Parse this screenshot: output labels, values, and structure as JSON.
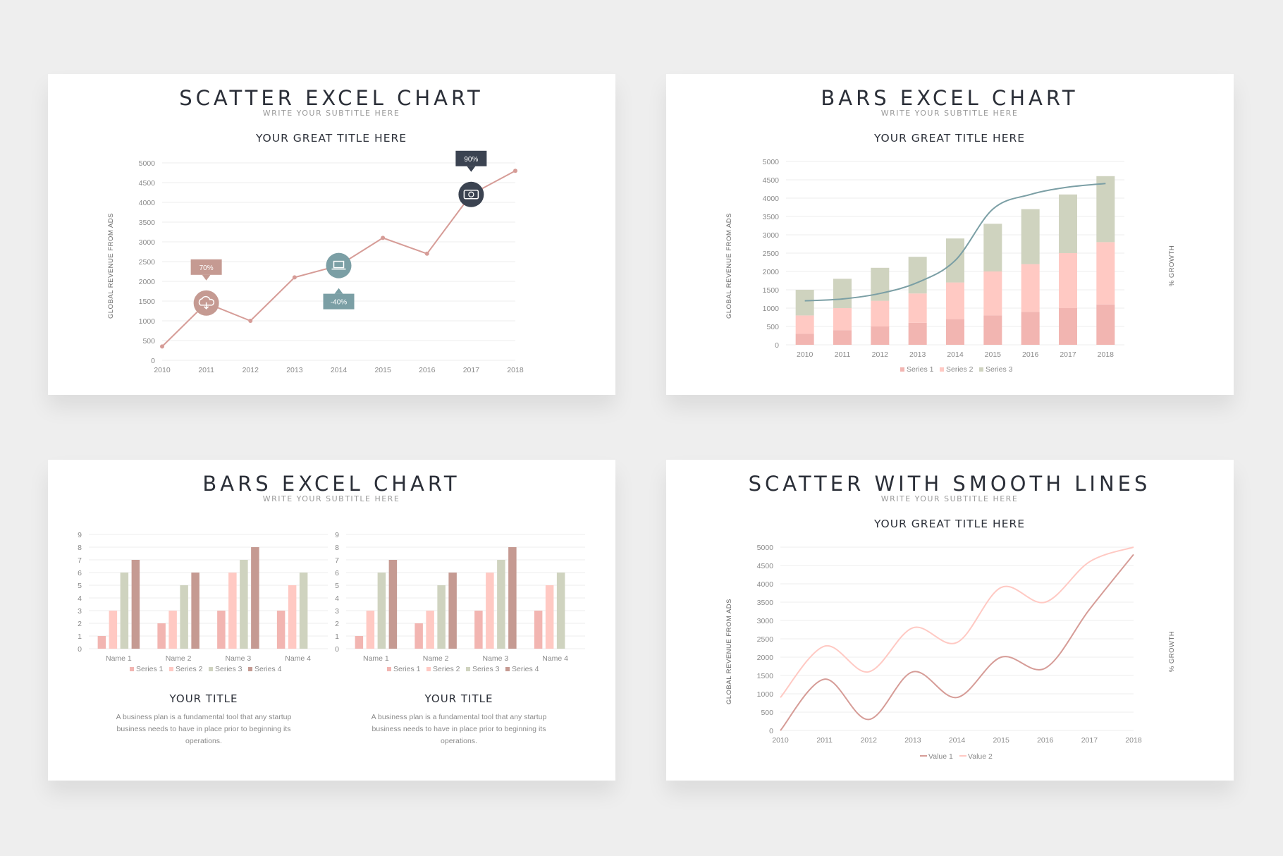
{
  "colors": {
    "rose": "#d69c97",
    "pink": "#ffc9c3",
    "lightpink": "#f2b5b1",
    "sage": "#cfd3bf",
    "mauve": "#c59a92",
    "slate": "#7b9fa5",
    "navy": "#3b4351",
    "grid": "#eeeeee"
  },
  "slides": [
    {
      "title": "SCATTER EXCEL CHART",
      "subtitle": "WRITE YOUR SUBTITLE HERE",
      "chart_title": "YOUR GREAT TITLE HERE",
      "y_axis_label": "GLOBAL REVENUE FROM ADS",
      "badges": [
        {
          "year": 2011,
          "value": 1450,
          "label": "70%",
          "icon": "cloud-icon",
          "position": "above"
        },
        {
          "year": 2014,
          "value": 2400,
          "label": "-40%",
          "icon": "laptop-icon",
          "position": "below"
        },
        {
          "year": 2017,
          "value": 4200,
          "label": "90%",
          "icon": "money-icon",
          "position": "above"
        }
      ]
    },
    {
      "title": "BARS EXCEL CHART",
      "subtitle": "WRITE YOUR SUBTITLE HERE",
      "chart_title": "YOUR GREAT TITLE HERE",
      "y_axis_label": "GLOBAL REVENUE FROM ADS",
      "y2_axis_label": "% GROWTH"
    },
    {
      "title": "BARS EXCEL CHART",
      "subtitle": "WRITE YOUR SUBTITLE HERE",
      "panels": [
        {
          "title": "YOUR TITLE",
          "text": [
            "A business plan is a fundamental tool that any startup",
            "business needs to have in place prior to beginning its",
            "operations."
          ]
        },
        {
          "title": "YOUR TITLE",
          "text": [
            "A business plan is a fundamental tool that any startup",
            "business needs to have in place prior to beginning its",
            "operations."
          ]
        }
      ]
    },
    {
      "title": "SCATTER WITH SMOOTH LINES",
      "subtitle": "WRITE YOUR SUBTITLE HERE",
      "chart_title": "YOUR GREAT TITLE HERE",
      "y_axis_label": "GLOBAL REVENUE FROM ADS",
      "y2_axis_label": "% GROWTH"
    }
  ],
  "chart_data": [
    {
      "type": "scatter",
      "x": [
        2010,
        2011,
        2012,
        2013,
        2014,
        2015,
        2016,
        2017,
        2018
      ],
      "values": [
        350,
        1450,
        1000,
        2100,
        2400,
        3100,
        2700,
        4200,
        4800
      ],
      "yticks": [
        0,
        500,
        1000,
        1500,
        2000,
        2500,
        3000,
        3500,
        4000,
        4500,
        5000
      ],
      "ylim": [
        0,
        5000
      ],
      "ylabel": "GLOBAL REVENUE FROM ADS",
      "title": "YOUR GREAT TITLE HERE",
      "grid": true
    },
    {
      "type": "bar",
      "stacked": true,
      "categories": [
        "2010",
        "2011",
        "2012",
        "2013",
        "2014",
        "2015",
        "2016",
        "2017",
        "2018"
      ],
      "series": [
        {
          "name": "Series 1",
          "values": [
            300,
            400,
            500,
            600,
            700,
            800,
            900,
            1000,
            1100
          ]
        },
        {
          "name": "Series 2",
          "values": [
            500,
            600,
            700,
            800,
            1000,
            1200,
            1300,
            1500,
            1700
          ]
        },
        {
          "name": "Series 3",
          "values": [
            700,
            800,
            900,
            1000,
            1200,
            1300,
            1500,
            1600,
            1800
          ]
        }
      ],
      "growth_line": [
        1200,
        1250,
        1400,
        1700,
        2300,
        3700,
        4100,
        4300,
        4400
      ],
      "yticks": [
        0,
        500,
        1000,
        1500,
        2000,
        2500,
        3000,
        3500,
        4000,
        4500,
        5000
      ],
      "ylim": [
        0,
        5000
      ],
      "ylabel": "GLOBAL REVENUE FROM ADS",
      "y2label": "% GROWTH",
      "title": "YOUR GREAT TITLE HERE",
      "legend": "bottom"
    },
    {
      "type": "bar",
      "categories": [
        "Name 1",
        "Name 2",
        "Name 3",
        "Name 4"
      ],
      "series": [
        {
          "name": "Series 1",
          "values": [
            1,
            2,
            3,
            3
          ]
        },
        {
          "name": "Series 2",
          "values": [
            3,
            3,
            6,
            5
          ]
        },
        {
          "name": "Series 3",
          "values": [
            6,
            5,
            7,
            6
          ]
        },
        {
          "name": "Series 4",
          "values": [
            7,
            6,
            8,
            null
          ]
        }
      ],
      "yticks": [
        0,
        1,
        2,
        3,
        4,
        5,
        6,
        7,
        8,
        9
      ],
      "ylim": [
        0,
        9
      ],
      "legend": "bottom"
    },
    {
      "type": "bar",
      "categories": [
        "Name 1",
        "Name 2",
        "Name 3",
        "Name 4"
      ],
      "series": [
        {
          "name": "Series 1",
          "values": [
            1,
            2,
            3,
            3
          ]
        },
        {
          "name": "Series 2",
          "values": [
            3,
            3,
            6,
            5
          ]
        },
        {
          "name": "Series 3",
          "values": [
            6,
            5,
            7,
            6
          ]
        },
        {
          "name": "Series 4",
          "values": [
            7,
            6,
            8,
            null
          ]
        }
      ],
      "yticks": [
        0,
        1,
        2,
        3,
        4,
        5,
        6,
        7,
        8,
        9
      ],
      "ylim": [
        0,
        9
      ],
      "legend": "bottom"
    },
    {
      "type": "line",
      "smooth": true,
      "x": [
        2010,
        2011,
        2012,
        2013,
        2014,
        2015,
        2016,
        2017,
        2018
      ],
      "series": [
        {
          "name": "Value 1",
          "values": [
            0,
            1400,
            300,
            1600,
            900,
            2000,
            1700,
            3300,
            4800
          ]
        },
        {
          "name": "Value 2",
          "values": [
            900,
            2300,
            1600,
            2800,
            2400,
            3900,
            3500,
            4600,
            5000
          ]
        }
      ],
      "yticks": [
        0,
        500,
        1000,
        1500,
        2000,
        2500,
        3000,
        3500,
        4000,
        4500,
        5000
      ],
      "ylim": [
        0,
        5000
      ],
      "ylabel": "GLOBAL REVENUE FROM ADS",
      "y2label": "% GROWTH",
      "title": "YOUR GREAT TITLE HERE",
      "legend": "bottom"
    }
  ]
}
